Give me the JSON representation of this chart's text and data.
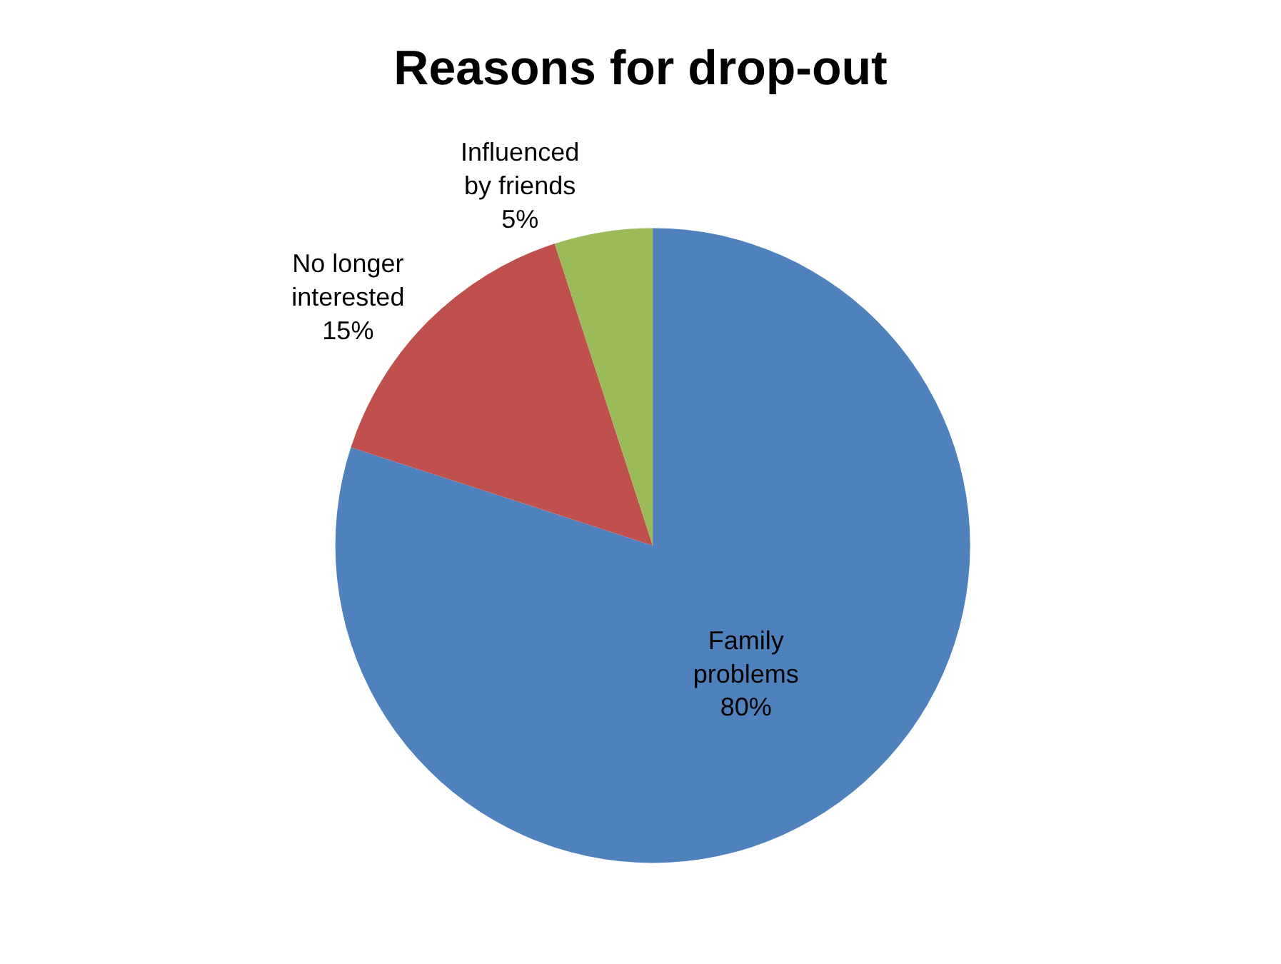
{
  "chart_data": {
    "type": "pie",
    "title": "Reasons for drop-out",
    "categories": [
      "Family problems",
      "No longer interested",
      "Influenced by friends"
    ],
    "values": [
      80,
      15,
      5
    ],
    "value_labels": [
      "80%",
      "15%",
      "5%"
    ],
    "colors": [
      "#4f81bd",
      "#c0504d",
      "#9bbb59"
    ],
    "legend": false
  }
}
